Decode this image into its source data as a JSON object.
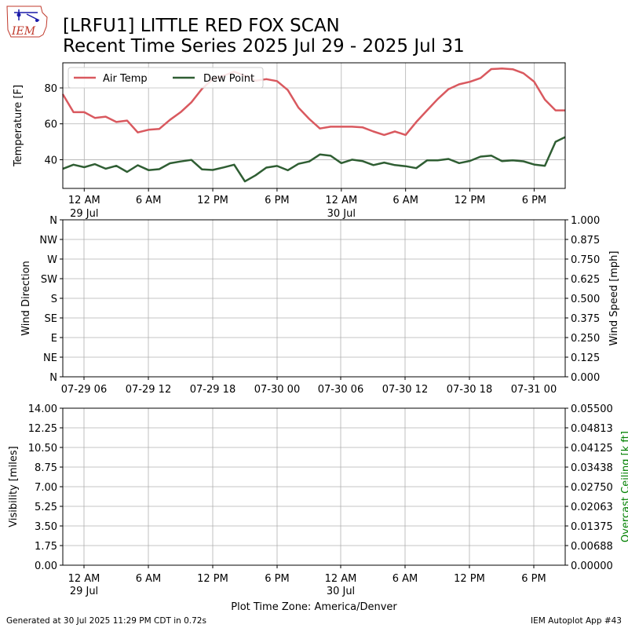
{
  "header": {
    "logo_text": "IEM",
    "title_line1": "[LRFU1] LITTLE RED FOX SCAN",
    "title_line2": "Recent Time Series 2025 Jul 29 - 2025 Jul 31"
  },
  "footer": {
    "left": "Generated at 30 Jul 2025 11:29 PM CDT in 0.72s",
    "right": "IEM Autoplot App #43",
    "timezone": "Plot Time Zone: America/Denver"
  },
  "colors": {
    "air_temp": "#d9595f",
    "dew_point": "#2f5e33",
    "grid": "#b0b0b0",
    "ceiling_label": "#008000"
  },
  "chart_data": [
    {
      "type": "line",
      "ylabel": "Temperature [F]",
      "ylim": [
        24,
        94
      ],
      "yticks": [
        40,
        60,
        80
      ],
      "grid": true,
      "legend_placement": "top-left",
      "xticks": [
        {
          "label": "12 AM",
          "sub": "29 Jul",
          "hour": 0
        },
        {
          "label": "6 AM",
          "sub": "",
          "hour": 6
        },
        {
          "label": "12 PM",
          "sub": "",
          "hour": 12
        },
        {
          "label": "6 PM",
          "sub": "",
          "hour": 18
        },
        {
          "label": "12 AM",
          "sub": "30 Jul",
          "hour": 24
        },
        {
          "label": "6 AM",
          "sub": "",
          "hour": 30
        },
        {
          "label": "12 PM",
          "sub": "",
          "hour": 36
        },
        {
          "label": "6 PM",
          "sub": "",
          "hour": 42
        }
      ],
      "xlim_hours": [
        -2.0,
        44.9
      ],
      "series": [
        {
          "name": "Air Temp",
          "color": "#d9595f",
          "x_hours": [
            -2.0,
            -1.0,
            0,
            1,
            2,
            3,
            4,
            5,
            6,
            7,
            8,
            9,
            10,
            11,
            12,
            13,
            14,
            15,
            16,
            17,
            18,
            19,
            20,
            21,
            22,
            23,
            24,
            25,
            26,
            27,
            28,
            29,
            30,
            31,
            32,
            33,
            34,
            35,
            36,
            37,
            38,
            39,
            40,
            41,
            42,
            43,
            44,
            44.9
          ],
          "values": [
            76.5,
            66.5,
            66.5,
            63.3,
            64.0,
            61.0,
            61.8,
            55.2,
            56.7,
            57.1,
            62.2,
            66.5,
            72.0,
            79.5,
            84.9,
            86.8,
            89.0,
            86.8,
            84.0,
            84.9,
            83.8,
            78.8,
            69.0,
            62.7,
            57.4,
            58.4,
            58.4,
            58.4,
            58.0,
            55.7,
            53.8,
            55.7,
            53.8,
            61.0,
            67.5,
            73.8,
            79.3,
            82.0,
            83.4,
            85.5,
            90.5,
            90.8,
            90.4,
            88.2,
            83.5,
            73.5,
            67.5,
            67.5
          ]
        },
        {
          "name": "Dew Point",
          "color": "#2f5e33",
          "x_hours": [
            -2.0,
            -1.0,
            0,
            1,
            2,
            3,
            4,
            5,
            6,
            7,
            8,
            9,
            10,
            11,
            12,
            13,
            14,
            15,
            16,
            17,
            18,
            19,
            20,
            21,
            22,
            23,
            24,
            25,
            26,
            27,
            28,
            29,
            30,
            31,
            32,
            33,
            34,
            35,
            36,
            37,
            38,
            39,
            40,
            41,
            42,
            43,
            44,
            44.9
          ],
          "values": [
            34.9,
            37.2,
            35.8,
            37.5,
            35.0,
            36.6,
            33.2,
            36.9,
            34.2,
            34.7,
            38.0,
            39.0,
            39.9,
            34.6,
            34.3,
            35.7,
            37.2,
            27.9,
            31.3,
            35.6,
            36.5,
            34.1,
            37.7,
            39.0,
            42.9,
            42.2,
            38.1,
            40.0,
            39.2,
            37.0,
            38.4,
            37.0,
            36.4,
            35.3,
            39.6,
            39.6,
            40.4,
            38.1,
            39.3,
            41.7,
            42.3,
            39.2,
            39.6,
            39.1,
            37.3,
            36.6,
            50.0,
            52.6
          ]
        }
      ]
    },
    {
      "type": "scatter",
      "ylabel": "Wind Direction",
      "y2label": "Wind Speed [mph]",
      "ylim": [
        0,
        360
      ],
      "y2lim": [
        0,
        1
      ],
      "grid": true,
      "yticks": [
        "N",
        "NE",
        "E",
        "SE",
        "S",
        "SW",
        "W",
        "NW",
        "N"
      ],
      "y2ticks": [
        "0.000",
        "0.125",
        "0.250",
        "0.375",
        "0.500",
        "0.625",
        "0.750",
        "0.875",
        "1.000"
      ],
      "xticks": [
        "07-29 06",
        "07-29 12",
        "07-29 18",
        "07-30 00",
        "07-30 06",
        "07-30 12",
        "07-30 18",
        "07-31 00"
      ],
      "series": []
    },
    {
      "type": "line",
      "ylabel": "Visibility [miles]",
      "y2label": "Overcast Ceiling [k ft]",
      "ylim": [
        0,
        14
      ],
      "y2lim": [
        0,
        0.055
      ],
      "grid": true,
      "yticks": [
        "0.00",
        "1.75",
        "3.50",
        "5.25",
        "7.00",
        "8.75",
        "10.50",
        "12.25",
        "14.00"
      ],
      "y2ticks": [
        "0.00000",
        "0.00688",
        "0.01375",
        "0.02063",
        "0.02750",
        "0.03438",
        "0.04125",
        "0.04813",
        "0.05500"
      ],
      "xticks": [
        {
          "label": "12 AM",
          "sub": "29 Jul"
        },
        {
          "label": "6 AM",
          "sub": ""
        },
        {
          "label": "12 PM",
          "sub": ""
        },
        {
          "label": "6 PM",
          "sub": ""
        },
        {
          "label": "12 AM",
          "sub": "30 Jul"
        },
        {
          "label": "6 AM",
          "sub": ""
        },
        {
          "label": "12 PM",
          "sub": ""
        },
        {
          "label": "6 PM",
          "sub": ""
        }
      ],
      "series": []
    }
  ]
}
